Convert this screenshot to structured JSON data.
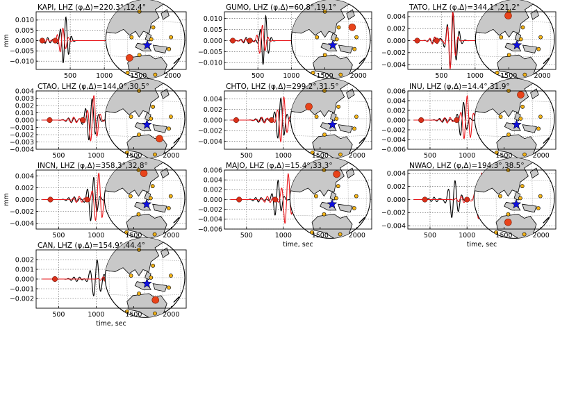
{
  "figure": {
    "ylabel": "mm",
    "xlabel": "time, sec",
    "colors": {
      "observed": "#000000",
      "synthetic": "#e8161a",
      "land": "#c8c8c8",
      "station": "#f2b217",
      "highlight_station": "#e8431a",
      "source": "#1010dd",
      "marker": "#d8301a"
    }
  },
  "chart_data": [
    {
      "type": "line",
      "title": "KAPI, LHZ (φ,Δ)=220.3°,12.4°",
      "station": "KAPI",
      "azimuth_deg": 220.3,
      "distance_deg": 12.4,
      "xlim": [
        0,
        2200
      ],
      "ylim": [
        -0.014,
        0.014
      ],
      "x_ticks": [
        500,
        1000,
        1500,
        2000
      ],
      "y_ticks": [
        -0.01,
        -0.005,
        0.0,
        0.005,
        0.01
      ],
      "y_tick_labels": [
        "−0.010",
        "−0.005",
        "0.000",
        "0.005",
        "0.010"
      ],
      "markers_sec": [
        90,
        280
      ],
      "grid": true,
      "show_xlabel": false,
      "show_ylabel": true
    },
    {
      "type": "line",
      "title": "GUMO, LHZ (φ,Δ)=60.8°,19.1°",
      "station": "GUMO",
      "azimuth_deg": 60.8,
      "distance_deg": 19.1,
      "xlim": [
        0,
        2200
      ],
      "ylim": [
        -0.013,
        0.013
      ],
      "x_ticks": [
        500,
        1000,
        1500,
        2000
      ],
      "y_ticks": [
        -0.01,
        -0.005,
        0.0,
        0.005,
        0.01
      ],
      "y_tick_labels": [
        "−0.010",
        "−0.005",
        "0.000",
        "0.005",
        "0.010"
      ],
      "markers_sec": [
        125,
        380
      ],
      "grid": true,
      "show_xlabel": false,
      "show_ylabel": false
    },
    {
      "type": "line",
      "title": "TATO, LHZ (φ,Δ)=344.1°,21.2°",
      "station": "TATO",
      "azimuth_deg": 344.1,
      "distance_deg": 21.2,
      "xlim": [
        0,
        2200
      ],
      "ylim": [
        -0.0048,
        0.0048
      ],
      "x_ticks": [
        500,
        1000,
        1500,
        2000
      ],
      "y_ticks": [
        -0.004,
        -0.002,
        0.0,
        0.002,
        0.004
      ],
      "y_tick_labels": [
        "−0.004",
        "−0.002",
        "0.000",
        "0.002",
        "0.004"
      ],
      "markers_sec": [
        140,
        430
      ],
      "grid": true,
      "show_xlabel": false,
      "show_ylabel": false
    },
    {
      "type": "line",
      "title": "CTAO, LHZ (φ,Δ)=144.0°,30.5°",
      "station": "CTAO",
      "azimuth_deg": 144.0,
      "distance_deg": 30.5,
      "xlim": [
        200,
        2200
      ],
      "ylim": [
        -0.004,
        0.004
      ],
      "x_ticks": [
        500,
        1000,
        1500,
        2000
      ],
      "y_ticks": [
        -0.004,
        -0.003,
        -0.002,
        -0.001,
        0.0,
        0.001,
        0.002,
        0.003,
        0.004
      ],
      "y_tick_labels": [
        "−0.004",
        "−0.003",
        "−0.002",
        "−0.001",
        "0.000",
        "0.001",
        "0.002",
        "0.003",
        "0.004"
      ],
      "markers_sec": [
        380,
        820
      ],
      "grid": true,
      "show_xlabel": false,
      "show_ylabel": false
    },
    {
      "type": "line",
      "title": "CHTO, LHZ (φ,Δ)=299.2°,31.5°",
      "station": "CHTO",
      "azimuth_deg": 299.2,
      "distance_deg": 31.5,
      "xlim": [
        200,
        2200
      ],
      "ylim": [
        -0.0055,
        0.0055
      ],
      "x_ticks": [
        500,
        1000,
        1500,
        2000
      ],
      "y_ticks": [
        -0.004,
        -0.002,
        0.0,
        0.002,
        0.004
      ],
      "y_tick_labels": [
        "−0.004",
        "−0.002",
        "0.000",
        "0.002",
        "0.004"
      ],
      "markers_sec": [
        360,
        840
      ],
      "grid": true,
      "show_xlabel": false,
      "show_ylabel": false
    },
    {
      "type": "line",
      "title": "INU, LHZ (φ,Δ)=14.4°,31.9°",
      "station": "INU",
      "azimuth_deg": 14.4,
      "distance_deg": 31.9,
      "xlim": [
        200,
        2200
      ],
      "ylim": [
        -0.006,
        0.006
      ],
      "x_ticks": [
        500,
        1000,
        1500,
        2000
      ],
      "y_ticks": [
        -0.006,
        -0.004,
        -0.002,
        0.0,
        0.002,
        0.004,
        0.006
      ],
      "y_tick_labels": [
        "−0.006",
        "−0.004",
        "−0.002",
        "0.000",
        "0.002",
        "0.004",
        "0.006"
      ],
      "markers_sec": [
        380,
        860
      ],
      "grid": true,
      "show_xlabel": false,
      "show_ylabel": false
    },
    {
      "type": "line",
      "title": "INCN, LHZ (φ,Δ)=358.3°,32.8°",
      "station": "INCN",
      "azimuth_deg": 358.3,
      "distance_deg": 32.8,
      "xlim": [
        200,
        2200
      ],
      "ylim": [
        -0.005,
        0.005
      ],
      "x_ticks": [
        500,
        1000,
        1500,
        2000
      ],
      "y_ticks": [
        -0.004,
        -0.002,
        0.0,
        0.002,
        0.004
      ],
      "y_tick_labels": [
        "−0.004",
        "−0.002",
        "0.000",
        "0.002",
        "0.004"
      ],
      "markers_sec": [
        390,
        880
      ],
      "grid": true,
      "show_xlabel": false,
      "show_ylabel": true
    },
    {
      "type": "line",
      "title": "MAJO, LHZ (φ,Δ)=15.4°,33.3°",
      "station": "MAJO",
      "azimuth_deg": 15.4,
      "distance_deg": 33.3,
      "xlim": [
        200,
        2200
      ],
      "ylim": [
        -0.006,
        0.006
      ],
      "x_ticks": [
        500,
        1000,
        1500,
        2000
      ],
      "y_ticks": [
        -0.006,
        -0.004,
        -0.002,
        0.0,
        0.002,
        0.004,
        0.006
      ],
      "y_tick_labels": [
        "−0.006",
        "−0.004",
        "−0.002",
        "0.000",
        "0.002",
        "0.004",
        "0.006"
      ],
      "markers_sec": [
        400,
        890
      ],
      "grid": true,
      "show_xlabel": true,
      "show_ylabel": false
    },
    {
      "type": "line",
      "title": "NWAO, LHZ (φ,Δ)=194.3°,38.5°",
      "station": "NWAO",
      "azimuth_deg": 194.3,
      "distance_deg": 38.5,
      "xlim": [
        200,
        2200
      ],
      "ylim": [
        -0.0045,
        0.0045
      ],
      "x_ticks": [
        500,
        1000,
        1500,
        2000
      ],
      "y_ticks": [
        -0.004,
        -0.002,
        0.0,
        0.002,
        0.004
      ],
      "y_tick_labels": [
        "−0.004",
        "−0.002",
        "0.000",
        "0.002",
        "0.004"
      ],
      "markers_sec": [
        430,
        1000
      ],
      "grid": true,
      "show_xlabel": true,
      "show_ylabel": false
    },
    {
      "type": "line",
      "title": "CAN, LHZ (φ,Δ)=154.9°,44.4°",
      "station": "CAN",
      "azimuth_deg": 154.9,
      "distance_deg": 44.4,
      "xlim": [
        200,
        2200
      ],
      "ylim": [
        -0.003,
        0.003
      ],
      "x_ticks": [
        500,
        1000,
        1500,
        2000
      ],
      "y_ticks": [
        -0.002,
        -0.001,
        0.0,
        0.001,
        0.002
      ],
      "y_tick_labels": [
        "−0.002",
        "−0.001",
        "0.000",
        "0.001",
        "0.002"
      ],
      "markers_sec": [
        450,
        1130
      ],
      "grid": true,
      "show_xlabel": true,
      "show_ylabel": false
    }
  ]
}
